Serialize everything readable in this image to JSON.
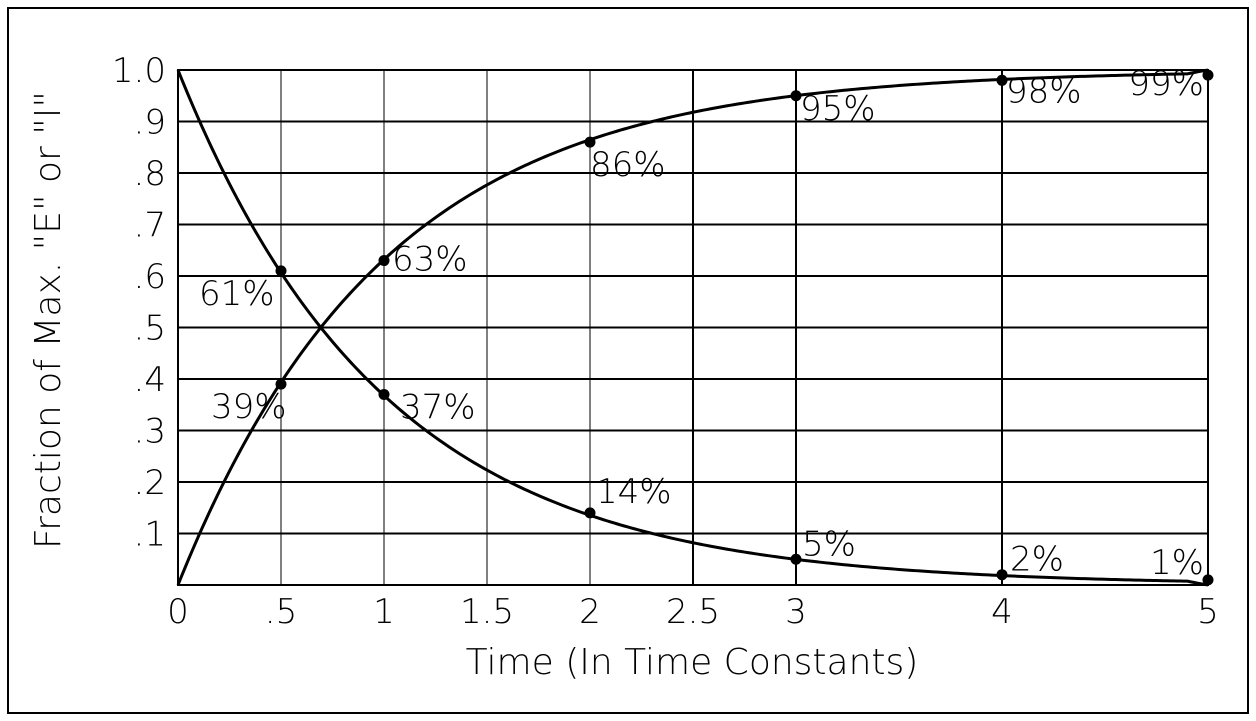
{
  "chart_data": {
    "type": "line",
    "xlabel": "Time (In Time Constants)",
    "ylabel": "Fraction of Max. \"E\" or \"I\"",
    "xlim": [
      0,
      5
    ],
    "ylim": [
      0,
      1
    ],
    "x_ticks": [
      {
        "value": 0,
        "label": "0"
      },
      {
        "value": 0.5,
        "label": ".5"
      },
      {
        "value": 1,
        "label": "1"
      },
      {
        "value": 1.5,
        "label": "1.5"
      },
      {
        "value": 2,
        "label": "2"
      },
      {
        "value": 2.5,
        "label": "2.5"
      },
      {
        "value": 3,
        "label": "3"
      },
      {
        "value": 4,
        "label": "4"
      },
      {
        "value": 5,
        "label": "5"
      }
    ],
    "y_ticks": [
      {
        "value": 0.1,
        "label": ".1"
      },
      {
        "value": 0.2,
        "label": ".2"
      },
      {
        "value": 0.3,
        "label": ".3"
      },
      {
        "value": 0.4,
        "label": ".4"
      },
      {
        "value": 0.5,
        "label": ".5"
      },
      {
        "value": 0.6,
        "label": ".6"
      },
      {
        "value": 0.7,
        "label": ".7"
      },
      {
        "value": 0.8,
        "label": ".8"
      },
      {
        "value": 0.9,
        "label": ".9"
      },
      {
        "value": 1.0,
        "label": "1.0"
      }
    ],
    "grid": true,
    "legend": "none",
    "series": [
      {
        "curve": "rise",
        "points": [
          {
            "x": 0.5,
            "y": 0.39,
            "label": "39%"
          },
          {
            "x": 1,
            "y": 0.63,
            "label": "63%"
          },
          {
            "x": 2,
            "y": 0.86,
            "label": "86%"
          },
          {
            "x": 3,
            "y": 0.95,
            "label": "95%"
          },
          {
            "x": 4,
            "y": 0.98,
            "label": "98%"
          },
          {
            "x": 5,
            "y": 0.99,
            "label": "99%"
          }
        ]
      },
      {
        "curve": "decay",
        "points": [
          {
            "x": 0.5,
            "y": 0.61,
            "label": "61%"
          },
          {
            "x": 1,
            "y": 0.37,
            "label": "37%"
          },
          {
            "x": 2,
            "y": 0.14,
            "label": "14%"
          },
          {
            "x": 3,
            "y": 0.05,
            "label": "5%"
          },
          {
            "x": 4,
            "y": 0.02,
            "label": "2%"
          },
          {
            "x": 5,
            "y": 0.01,
            "label": "1%"
          }
        ]
      }
    ]
  }
}
